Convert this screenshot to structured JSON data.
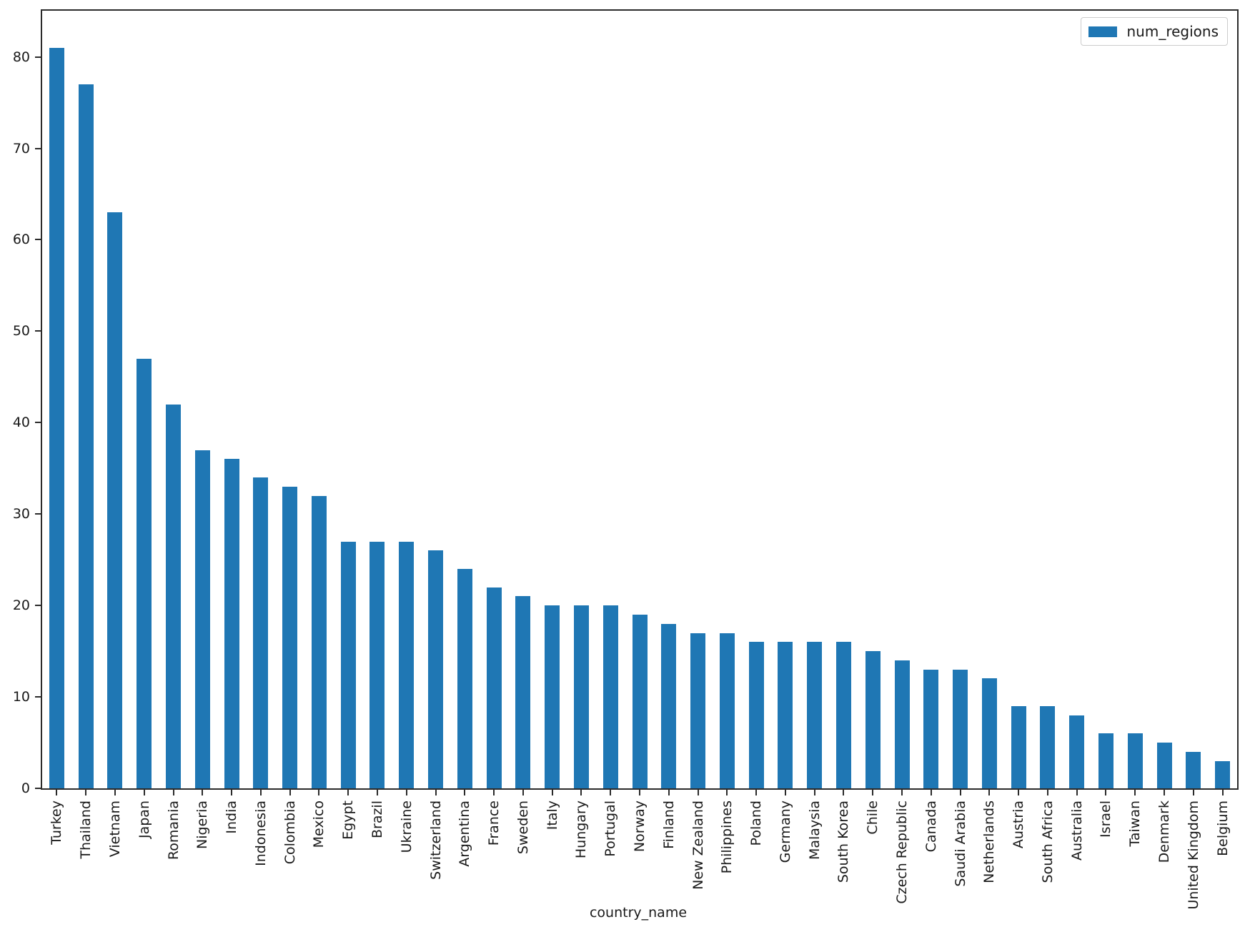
{
  "chart_data": {
    "type": "bar",
    "title": "",
    "xlabel": "country_name",
    "ylabel": "",
    "legend_position": "upper right",
    "grid": false,
    "bar_color": "#1f77b4",
    "axis_color": "#2b2b2b",
    "ylim": [
      0,
      85.05
    ],
    "yticks": [
      0,
      10,
      20,
      30,
      40,
      50,
      60,
      70,
      80
    ],
    "categories": [
      "Turkey",
      "Thailand",
      "Vietnam",
      "Japan",
      "Romania",
      "Nigeria",
      "India",
      "Indonesia",
      "Colombia",
      "Mexico",
      "Egypt",
      "Brazil",
      "Ukraine",
      "Switzerland",
      "Argentina",
      "France",
      "Sweden",
      "Italy",
      "Hungary",
      "Portugal",
      "Norway",
      "Finland",
      "New Zealand",
      "Philippines",
      "Poland",
      "Germany",
      "Malaysia",
      "South Korea",
      "Chile",
      "Czech Republic",
      "Canada",
      "Saudi Arabia",
      "Netherlands",
      "Austria",
      "South Africa",
      "Australia",
      "Israel",
      "Taiwan",
      "Denmark",
      "United Kingdom",
      "Belgium"
    ],
    "series": [
      {
        "name": "num_regions",
        "values": [
          81,
          77,
          63,
          47,
          42,
          37,
          36,
          34,
          33,
          32,
          27,
          27,
          27,
          26,
          24,
          22,
          21,
          20,
          20,
          20,
          19,
          18,
          17,
          17,
          16,
          16,
          16,
          16,
          15,
          14,
          13,
          13,
          12,
          9,
          9,
          8,
          6,
          6,
          5,
          4,
          3
        ]
      }
    ]
  }
}
